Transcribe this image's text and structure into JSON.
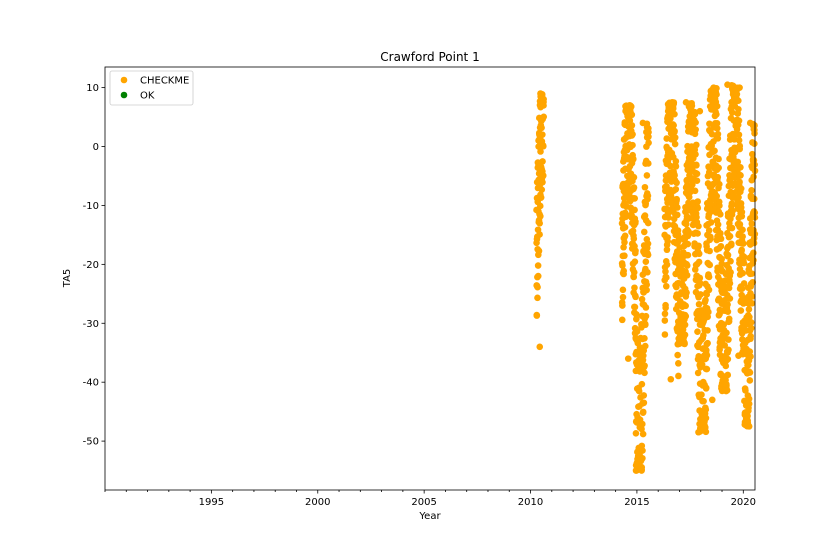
{
  "chart_data": {
    "type": "scatter",
    "title": "Crawford Point 1",
    "xlabel": "Year",
    "ylabel": "TA5",
    "xlim": [
      1990.0,
      2020.55
    ],
    "ylim": [
      -58.3,
      13.5
    ],
    "xticks": [
      1995,
      2000,
      2005,
      2010,
      2015,
      2020
    ],
    "yticks": [
      10,
      0,
      -10,
      -20,
      -30,
      -40,
      -50
    ],
    "grid": false,
    "legend_position": "top-left",
    "series": [
      {
        "name": "CHECKME",
        "color": "#ffa500",
        "segments": [
          {
            "x": [
              2010.28,
              2010.62
            ],
            "ymin": -34.0,
            "ymax": 9.0
          },
          {
            "x": [
              2014.3,
              2014.95
            ],
            "ymin": -36.0,
            "ymax": 7.0
          },
          {
            "x": [
              2014.95,
              2015.55
            ],
            "ymin": -55.0,
            "ymax": 4.0
          },
          {
            "x": [
              2016.3,
              2016.95
            ],
            "ymin": -39.5,
            "ymax": 7.5
          },
          {
            "x": [
              2016.95,
              2017.6
            ],
            "ymin": -33.5,
            "ymax": 7.5
          },
          {
            "x": [
              2017.6,
              2018.25
            ],
            "ymin": -48.5,
            "ymax": 6.0
          },
          {
            "x": [
              2018.25,
              2018.9
            ],
            "ymin": -43.0,
            "ymax": 10.0
          },
          {
            "x": [
              2018.9,
              2019.55
            ],
            "ymin": -41.5,
            "ymax": 10.5
          },
          {
            "x": [
              2019.55,
              2020.05
            ],
            "ymin": -35.5,
            "ymax": 10.0
          },
          {
            "x": [
              2020.05,
              2020.55
            ],
            "ymin": -47.5,
            "ymax": 4.0
          }
        ]
      },
      {
        "name": "OK",
        "color": "#008000",
        "segments": []
      }
    ]
  }
}
